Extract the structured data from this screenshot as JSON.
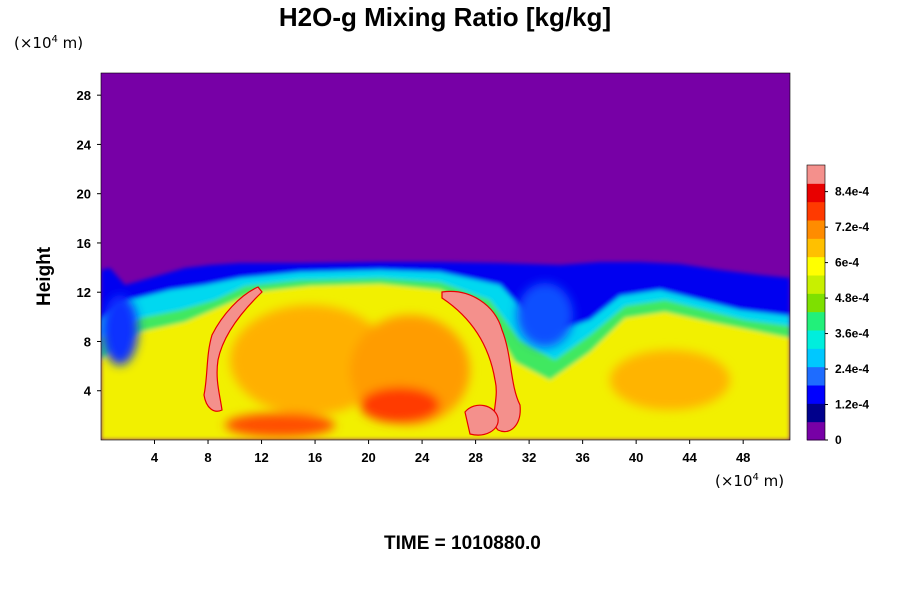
{
  "chart_data": {
    "type": "heatmap",
    "title": "H2O-g Mixing Ratio [kg/kg]",
    "ylabel": "Height",
    "x_unit": {
      "base": "(×10",
      "exp": "4",
      "suffix": " m)"
    },
    "y_unit": {
      "base": "(×10",
      "exp": "4",
      "suffix": " m)"
    },
    "xlim": [
      0,
      51.5
    ],
    "ylim": [
      0,
      29.8
    ],
    "x_ticks": [
      4,
      8,
      12,
      16,
      20,
      24,
      28,
      32,
      36,
      40,
      44,
      48
    ],
    "y_ticks": [
      4,
      8,
      12,
      16,
      20,
      24,
      28
    ],
    "colorbar": {
      "min": 0,
      "max": 0.00093,
      "tick_values": [
        0,
        0.00012,
        0.00024,
        0.00036,
        0.00048,
        0.0006,
        0.00072,
        0.00084
      ],
      "tick_labels": [
        "0",
        "1.2e-4",
        "2.4e-4",
        "3.6e-4",
        "4.8e-4",
        "6e-4",
        "7.2e-4",
        "8.4e-4"
      ],
      "colors": [
        "#7700a6",
        "#00008c",
        "#0000ff",
        "#1e6cff",
        "#00c8ff",
        "#00eedd",
        "#22f07a",
        "#7ee000",
        "#c8f000",
        "#ffff00",
        "#ffc000",
        "#ff8c00",
        "#ff3a00",
        "#e80000",
        "#f4908c"
      ]
    },
    "field": {
      "background_value": 0,
      "boundary_top_km": [
        [
          0,
          13.4
        ],
        [
          3,
          13.2
        ],
        [
          6,
          14.2
        ],
        [
          10,
          14.3
        ],
        [
          14,
          13.9
        ],
        [
          20,
          13.8
        ],
        [
          26,
          13.9
        ],
        [
          30,
          13.6
        ],
        [
          33,
          13.8
        ],
        [
          36,
          13.2
        ],
        [
          39,
          13.6
        ],
        [
          42,
          13.0
        ],
        [
          45,
          12.4
        ],
        [
          48,
          12.4
        ],
        [
          51.5,
          12.0
        ]
      ]
    }
  },
  "footer": {
    "time_text": "TIME = 1010880.0"
  }
}
